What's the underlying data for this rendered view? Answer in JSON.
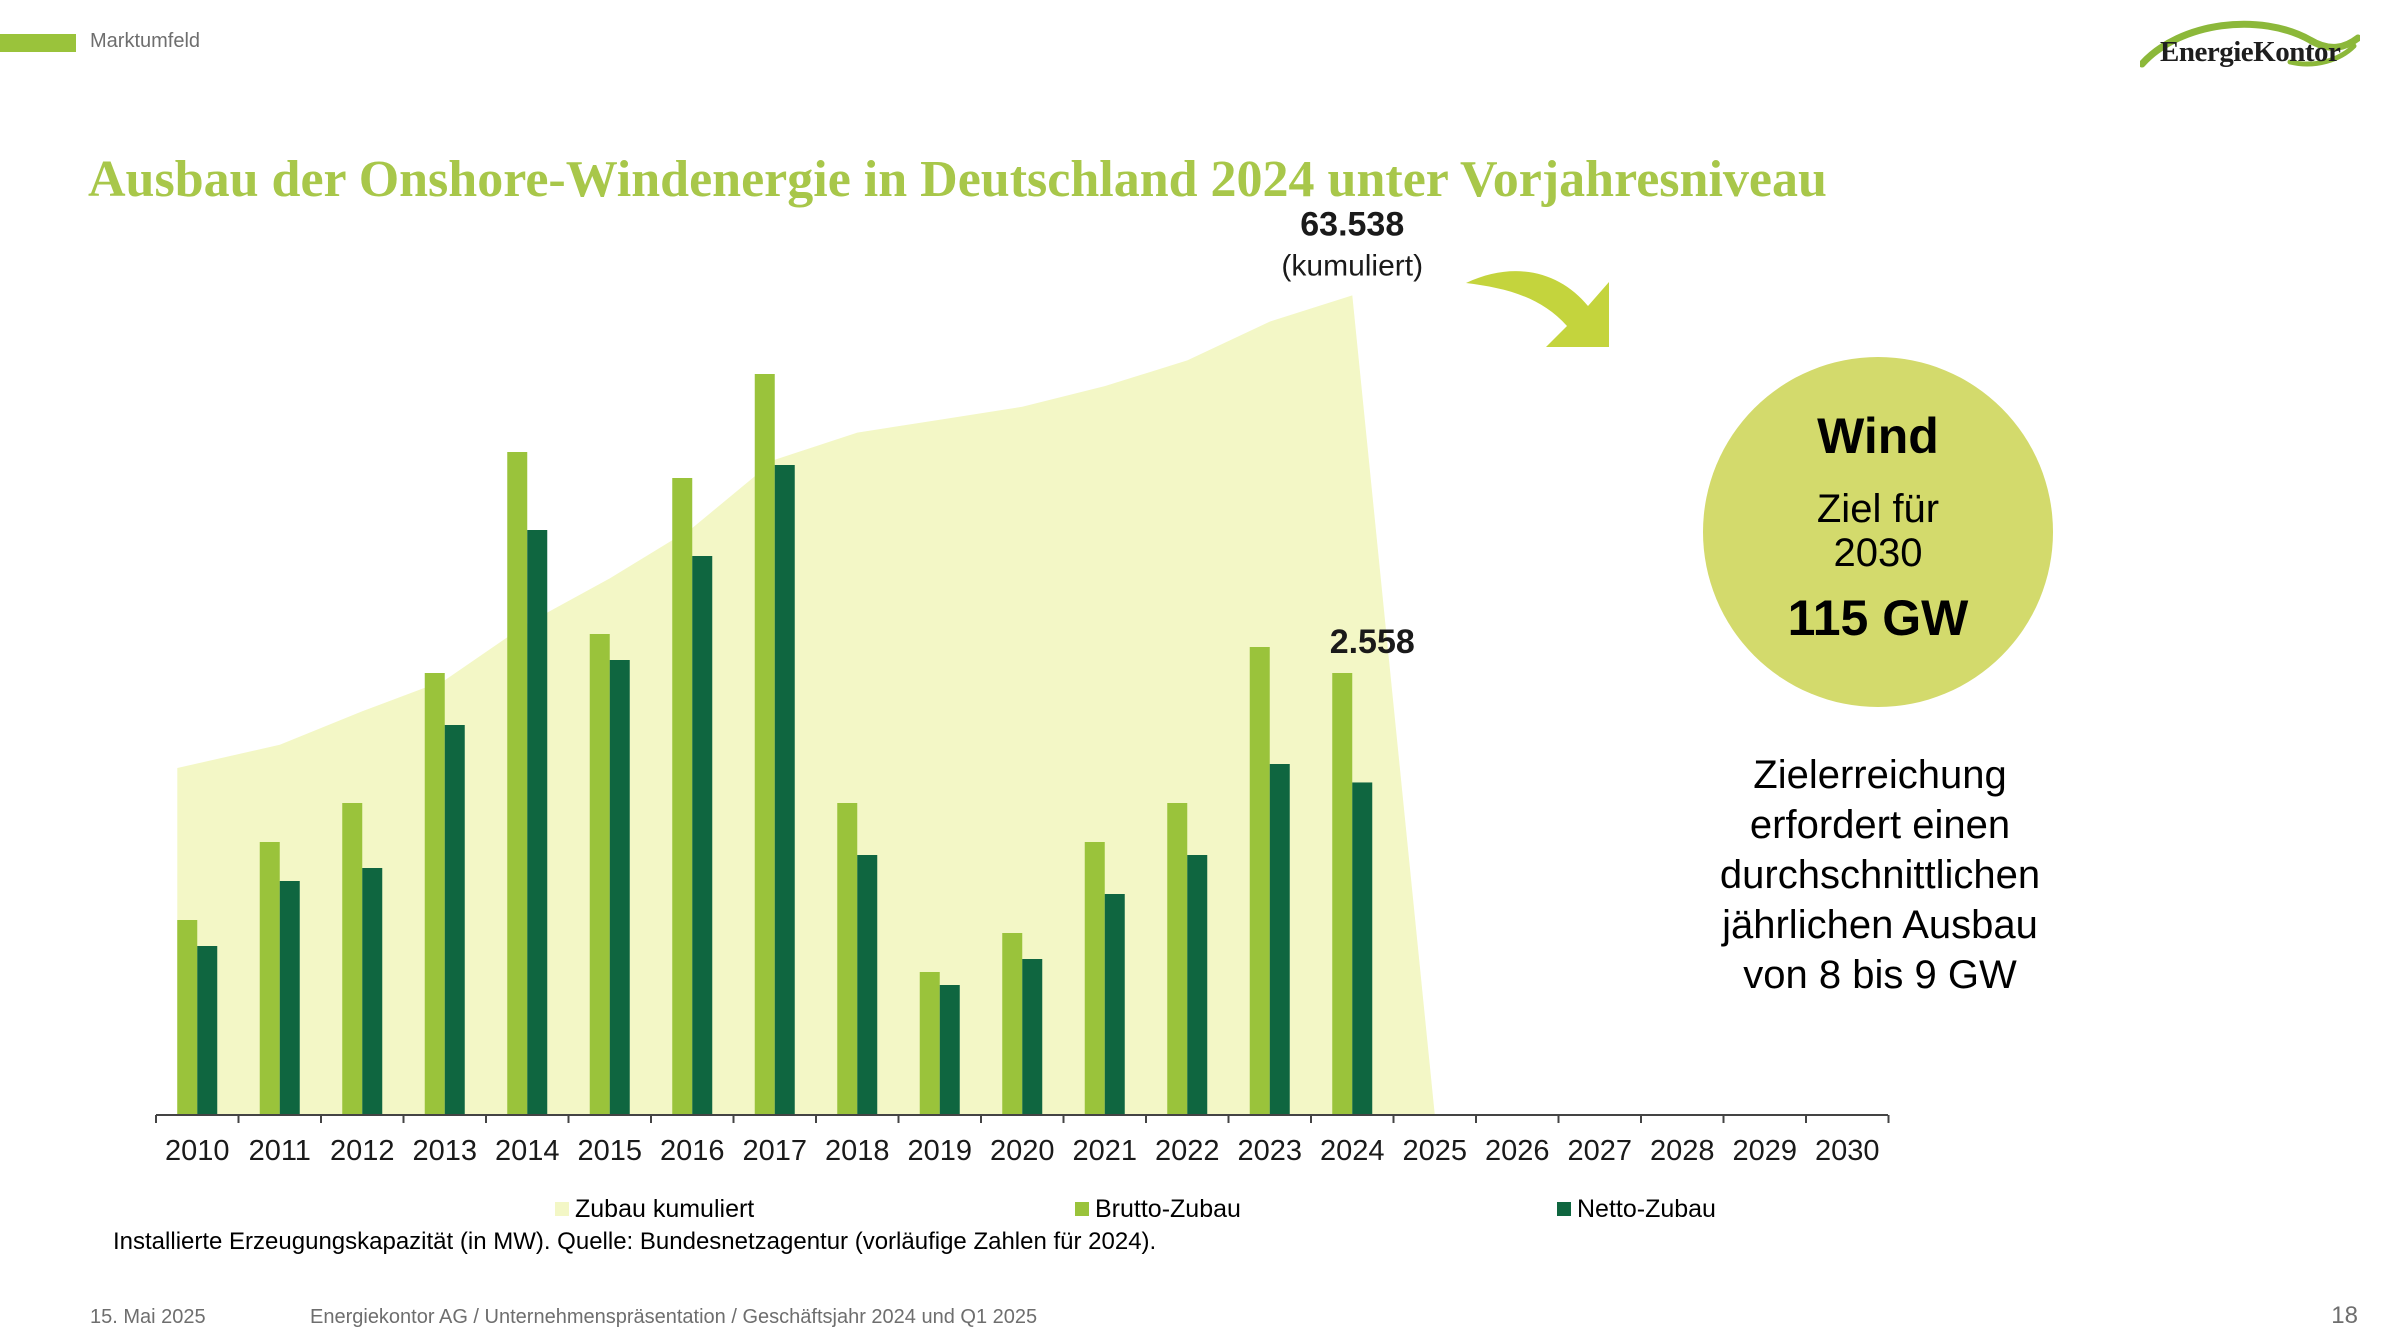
{
  "header": {
    "section_label": "Marktumfeld",
    "logo_text": "EnergieKontor"
  },
  "title": "Ausbau der Onshore-Windenergie in Deutschland 2024 unter Vorjahresniveau",
  "colors": {
    "accent": "#9ac33b",
    "title": "#a8c74a",
    "cumulative": "#f3f7c6",
    "brutto": "#9ac33b",
    "netto": "#0f6640",
    "circle": "#d3da6c",
    "arrow": "#c4d43d"
  },
  "chart_data": {
    "type": "bar",
    "categories": [
      "2010",
      "2011",
      "2012",
      "2013",
      "2014",
      "2015",
      "2016",
      "2017",
      "2018",
      "2019",
      "2020",
      "2021",
      "2022",
      "2023",
      "2024",
      "2025",
      "2026",
      "2027",
      "2028",
      "2029",
      "2030"
    ],
    "series": [
      {
        "name": "Zubau kumuliert",
        "type": "area",
        "values": [
          26900,
          28700,
          31300,
          33700,
          38100,
          41600,
          45500,
          50800,
          52900,
          53900,
          54900,
          56500,
          58500,
          61500,
          63538,
          0,
          null,
          null,
          null,
          null,
          null
        ]
      },
      {
        "name": "Brutto-Zubau",
        "type": "bar",
        "values": [
          1500,
          2100,
          2400,
          3400,
          5100,
          3700,
          4900,
          5700,
          2400,
          1100,
          1400,
          2100,
          2400,
          3600,
          3400,
          null,
          null,
          null,
          null,
          null,
          null
        ]
      },
      {
        "name": "Netto-Zubau",
        "type": "bar",
        "values": [
          1300,
          1800,
          1900,
          3000,
          4500,
          3500,
          4300,
          5000,
          2000,
          1000,
          1200,
          1700,
          2000,
          2700,
          2558,
          null,
          null,
          null,
          null,
          null,
          null
        ]
      }
    ],
    "annotations": {
      "cumulative_value": "63.538",
      "cumulative_label": "(kumuliert)",
      "net_2024_value": "2.558"
    },
    "legend": {
      "position": "bottom",
      "items": [
        "Zubau kumuliert",
        "Brutto-Zubau",
        "Netto-Zubau"
      ]
    },
    "unit_note": "Installierte Erzeugungskapazität (in MW). Quelle: Bundesnetzagentur (vorläufige Zahlen für 2024).",
    "grid": false
  },
  "callout": {
    "title": "Wind",
    "subtitle": "Ziel für\n2030",
    "target": "115 GW",
    "note": "Zielerreichung\nerfordert einen\ndurchschnittlichen\njährlichen Ausbau\nvon 8 bis 9 GW"
  },
  "footer": {
    "date": "15. Mai 2025",
    "text": "Energiekontor AG / Unternehmenspräsentation / Geschäftsjahr 2024 und Q1 2025",
    "page_number": "18"
  }
}
